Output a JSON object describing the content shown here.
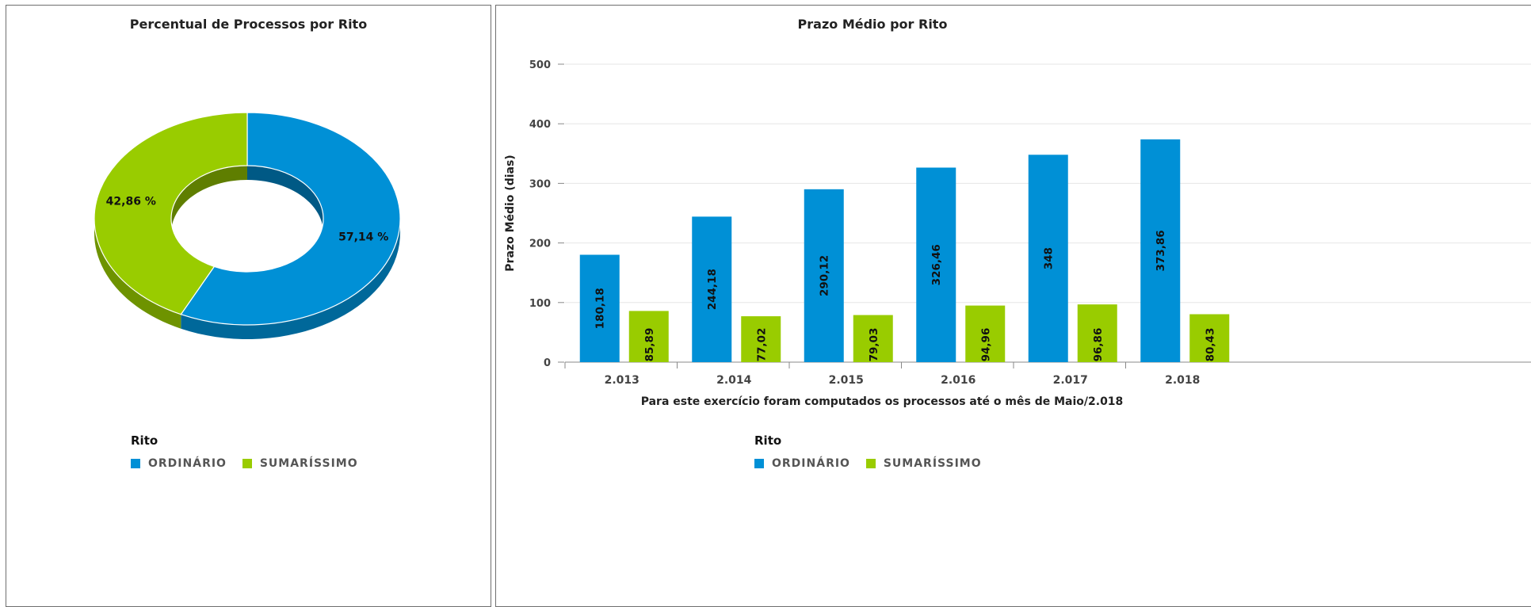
{
  "colors": {
    "ordinario": "#0090d6",
    "sumarissimo": "#99cc00"
  },
  "legend": {
    "title": "Rito",
    "items": [
      "ORDINÁRIO",
      "SUMARÍSSIMO"
    ]
  },
  "chart_data": [
    {
      "type": "pie",
      "title": "Percentual de Processos por Rito",
      "labels": [
        "ORDINÁRIO",
        "SUMARÍSSIMO"
      ],
      "values": [
        57.14,
        42.86
      ],
      "value_labels": [
        "57,14 %",
        "42,86 %"
      ]
    },
    {
      "type": "bar",
      "title": "Prazo Médio por Rito",
      "xlabel": "Para este exercício foram computados os processos até o mês de Maio/2.018",
      "ylabel": "Prazo Médio (dias)",
      "ylim": [
        0,
        500
      ],
      "yticks": [
        0,
        100,
        200,
        300,
        400,
        500
      ],
      "grid": true,
      "categories": [
        "2.013",
        "2.014",
        "2.015",
        "2.016",
        "2.017",
        "2.018"
      ],
      "series": [
        {
          "name": "ORDINÁRIO",
          "values": [
            180.18,
            244.18,
            290.12,
            326.46,
            348,
            373.86
          ],
          "labels": [
            "180,18",
            "244,18",
            "290,12",
            "326,46",
            "348",
            "373,86"
          ]
        },
        {
          "name": "SUMARÍSSIMO",
          "values": [
            85.89,
            77.02,
            79.03,
            94.96,
            96.86,
            80.43
          ],
          "labels": [
            "85,89",
            "77,02",
            "79,03",
            "94,96",
            "96,86",
            "80,43"
          ]
        }
      ]
    }
  ]
}
